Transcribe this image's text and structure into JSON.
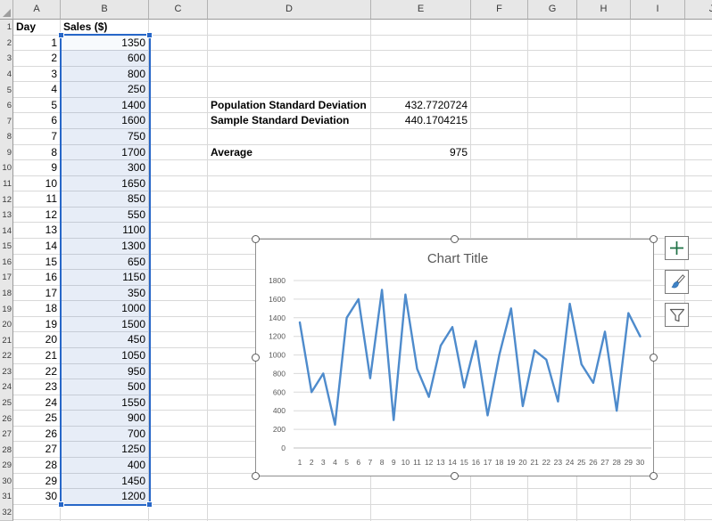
{
  "app": {
    "title": "Excel worksheet with daily sales data, standard deviation calculations and line chart"
  },
  "sheet": {
    "column_headers": [
      "",
      "A",
      "B",
      "C",
      "D",
      "E",
      "F",
      "G",
      "H",
      "I",
      "J"
    ],
    "row_headers": [
      "1",
      "2",
      "3",
      "4",
      "5",
      "6",
      "7",
      "8",
      "9",
      "10",
      "11",
      "12",
      "13",
      "14",
      "15",
      "16",
      "17",
      "18",
      "19",
      "20",
      "21",
      "22",
      "23",
      "24",
      "25",
      "26",
      "27",
      "28",
      "29",
      "30",
      "31",
      "32"
    ],
    "table": {
      "day_header": "Day",
      "sales_header": "Sales ($)",
      "days": [
        1,
        2,
        3,
        4,
        5,
        6,
        7,
        8,
        9,
        10,
        11,
        12,
        13,
        14,
        15,
        16,
        17,
        18,
        19,
        20,
        21,
        22,
        23,
        24,
        25,
        26,
        27,
        28,
        29,
        30
      ],
      "sales": [
        1350,
        600,
        800,
        250,
        1400,
        1600,
        750,
        1700,
        300,
        1650,
        850,
        550,
        1100,
        1300,
        650,
        1150,
        350,
        1000,
        1500,
        450,
        1050,
        950,
        500,
        1550,
        900,
        700,
        1250,
        400,
        1450,
        1200
      ]
    },
    "stats": [
      {
        "row": 6,
        "label": "Population Standard Deviation",
        "value": "432.7720724"
      },
      {
        "row": 7,
        "label": "Sample Standard Deviation",
        "value": "440.1704215"
      },
      {
        "row": 9,
        "label": "Average",
        "value": "975"
      }
    ]
  },
  "selection": {
    "range": "B2:B31",
    "border_color": "#2767c8",
    "fill_color": "rgba(68,114,196,0.13)"
  },
  "chart_data": {
    "type": "line",
    "title": "Chart Title",
    "x": [
      1,
      2,
      3,
      4,
      5,
      6,
      7,
      8,
      9,
      10,
      11,
      12,
      13,
      14,
      15,
      16,
      17,
      18,
      19,
      20,
      21,
      22,
      23,
      24,
      25,
      26,
      27,
      28,
      29,
      30
    ],
    "series": [
      {
        "name": "Sales ($)",
        "values": [
          1350,
          600,
          800,
          250,
          1400,
          1600,
          750,
          1700,
          300,
          1650,
          850,
          550,
          1100,
          1300,
          650,
          1150,
          350,
          1000,
          1500,
          450,
          1050,
          950,
          500,
          1550,
          900,
          700,
          1250,
          400,
          1450,
          1200
        ]
      }
    ],
    "xlabel": "",
    "ylabel": "",
    "ylim": [
      0,
      1800
    ],
    "ytick_step": 200,
    "grid": true,
    "legend": "none",
    "line_color": "#4e8bcc",
    "title_color": "#595959",
    "tick_color": "#595959"
  },
  "chart_tools": [
    {
      "name": "chart-elements-button",
      "icon": "plus-icon",
      "color": "#1e7145"
    },
    {
      "name": "chart-styles-button",
      "icon": "brush-icon",
      "color": "#3f83c6"
    },
    {
      "name": "chart-filters-button",
      "icon": "funnel-icon",
      "color": "#5a5a5a"
    }
  ]
}
